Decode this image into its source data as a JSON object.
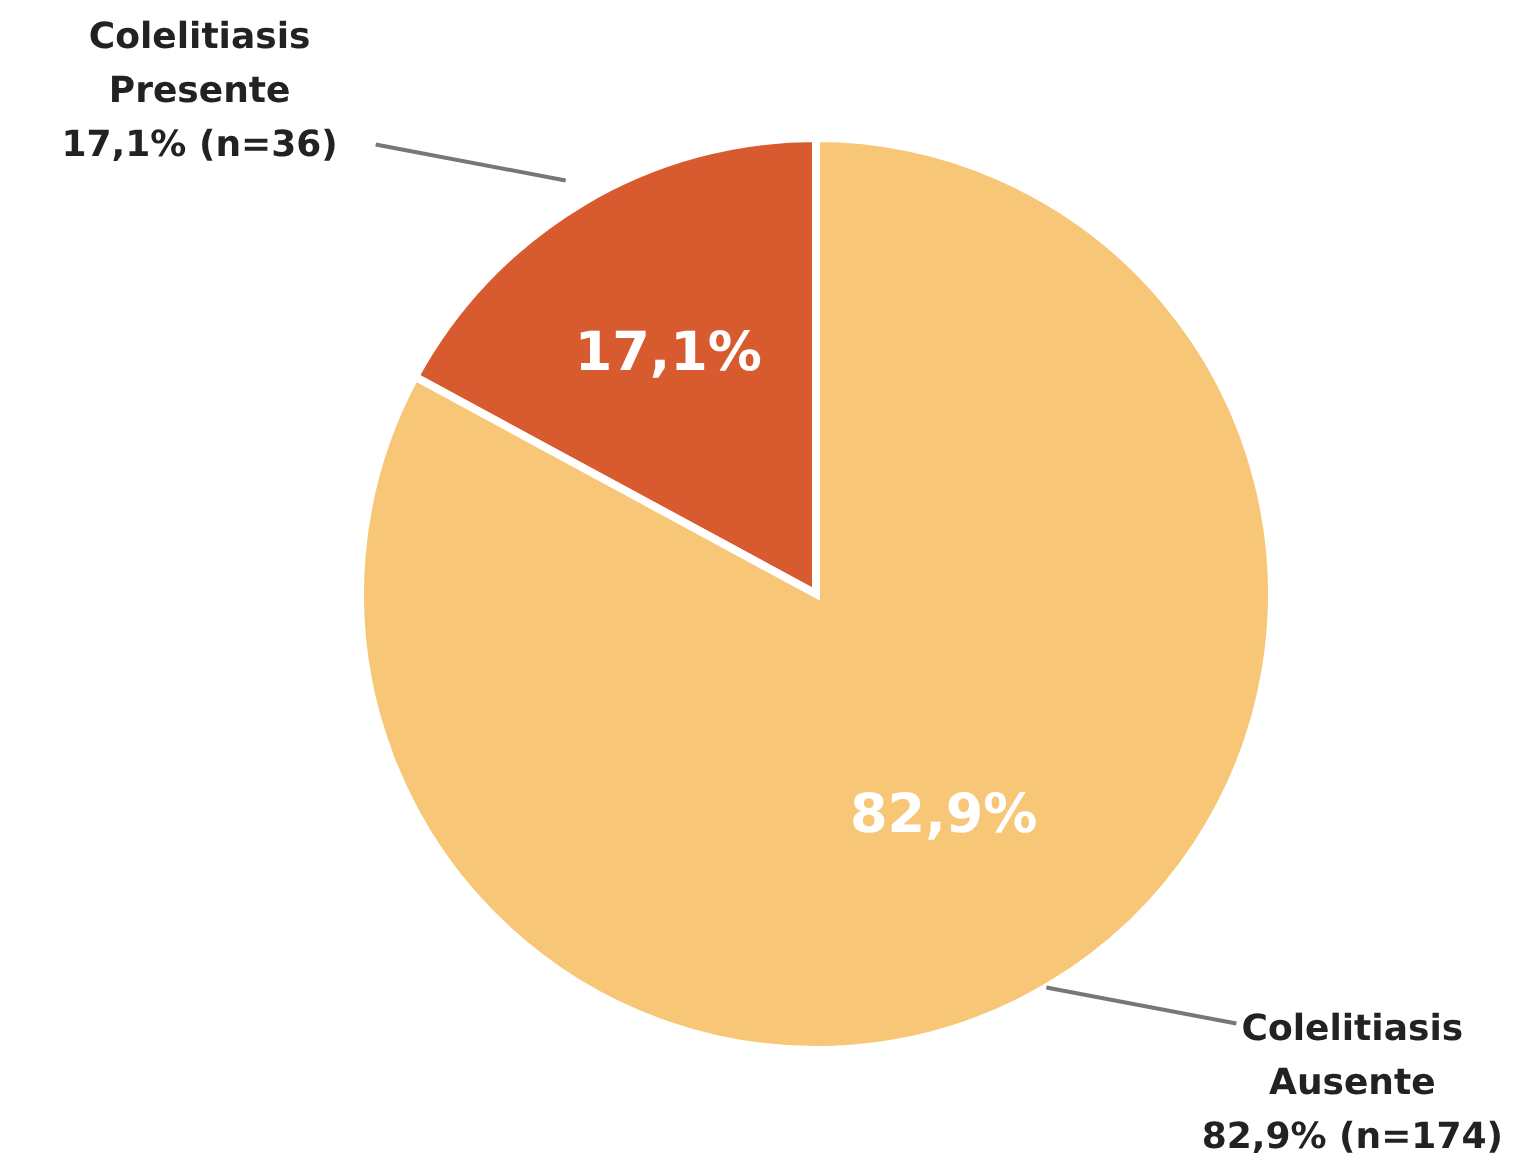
{
  "chart_data": {
    "type": "pie",
    "categories": [
      "Colelitiasis Presente",
      "Colelitiasis Ausente"
    ],
    "values": [
      17.1,
      82.9
    ],
    "colors": [
      "#d75b2e",
      "#f7c676"
    ],
    "value_labels": [
      "17,1%",
      "82,9%"
    ],
    "annotations": [
      "17,1% (n=36)",
      "82,9% (n=174)"
    ]
  }
}
